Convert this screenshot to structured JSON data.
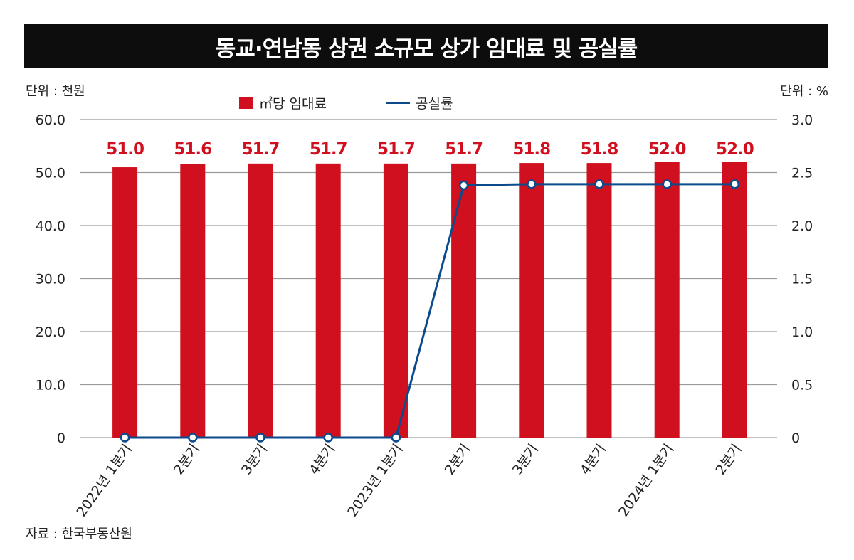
{
  "title": "동교·연남동 상권 소규모 상가 임대료 및 공실률",
  "left_unit": "단위 : 천원",
  "right_unit": "단위 : %",
  "source": "자료 : 한국부동산원",
  "colors": {
    "bar": "#d0101f",
    "line": "#0b4a8b",
    "grid": "#9a9a9a",
    "label": "#d0101f"
  },
  "chart_data": {
    "type": "bar",
    "categories": [
      "2022년 1분기",
      "2분기",
      "3분기",
      "4분기",
      "2023년 1분기",
      "2분기",
      "3분기",
      "4분기",
      "2024년 1분기",
      "2분기"
    ],
    "series": [
      {
        "name": "㎡당 임대료",
        "type": "bar",
        "axis": "left",
        "values": [
          51.0,
          51.6,
          51.7,
          51.7,
          51.7,
          51.7,
          51.8,
          51.8,
          52.0,
          52.0
        ],
        "labels": [
          "51.0",
          "51.6",
          "51.7",
          "51.7",
          "51.7",
          "51.7",
          "51.8",
          "51.8",
          "52.0",
          "52.0"
        ]
      },
      {
        "name": "공실률",
        "type": "line",
        "axis": "right",
        "values": [
          0,
          0,
          0,
          0,
          0,
          2.38,
          2.39,
          2.39,
          2.39,
          2.39
        ]
      }
    ],
    "y_left": {
      "ylim": [
        0,
        60
      ],
      "ticks": [
        "0",
        "10.0",
        "20.0",
        "30.0",
        "40.0",
        "50.0",
        "60.0"
      ]
    },
    "y_right": {
      "ylim": [
        0,
        3
      ],
      "ticks": [
        "0",
        "0.5",
        "1.0",
        "1.5",
        "2.0",
        "2.5",
        "3.0"
      ]
    },
    "grid": true,
    "legend_position": "top-center"
  }
}
